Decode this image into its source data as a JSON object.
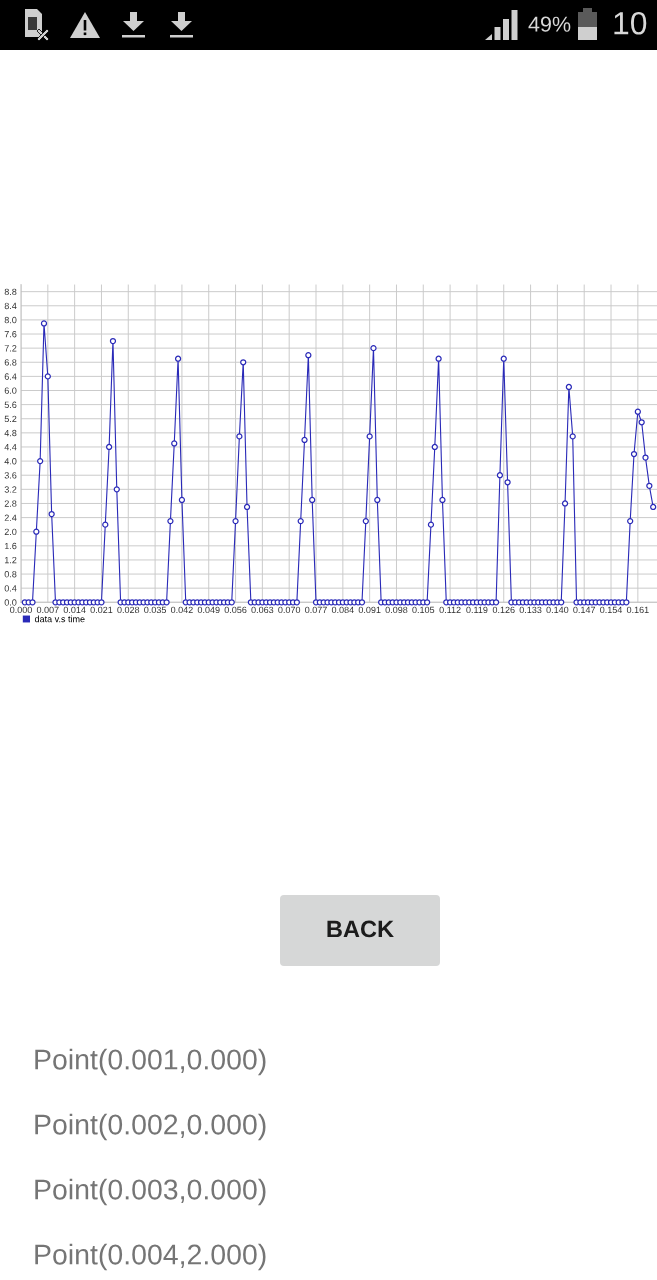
{
  "chart_data": {
    "type": "line",
    "annotations": [
      "49%",
      "10",
      "BACK",
      "Point(0.001,0.000)",
      "Point(0.002,0.000)",
      "Point(0.003,0.000)",
      "Point(0.004,2.000)"
    ],
    "x": [
      0.001,
      0.002,
      0.003,
      0.004,
      0.005,
      0.006,
      0.007,
      0.008,
      0.009,
      0.01,
      0.011,
      0.012,
      0.013,
      0.014,
      0.015,
      0.016,
      0.017,
      0.018,
      0.019,
      0.02,
      0.021,
      0.022,
      0.023,
      0.024,
      0.025,
      0.026,
      0.027,
      0.028,
      0.029,
      0.03,
      0.031,
      0.032,
      0.033,
      0.034,
      0.035,
      0.036,
      0.037,
      0.038,
      0.039,
      0.04,
      0.041,
      0.042,
      0.043,
      0.044,
      0.045,
      0.046,
      0.047,
      0.048,
      0.049,
      0.05,
      0.051,
      0.052,
      0.053,
      0.054,
      0.055,
      0.056,
      0.057,
      0.058,
      0.059,
      0.06,
      0.061,
      0.062,
      0.063,
      0.064,
      0.065,
      0.066,
      0.067,
      0.068,
      0.069,
      0.07,
      0.071,
      0.072,
      0.073,
      0.074,
      0.075,
      0.076,
      0.077,
      0.078,
      0.079,
      0.08,
      0.081,
      0.082,
      0.083,
      0.084,
      0.085,
      0.086,
      0.087,
      0.088,
      0.089,
      0.09,
      0.091,
      0.092,
      0.093,
      0.094,
      0.095,
      0.096,
      0.097,
      0.098,
      0.099,
      0.1,
      0.101,
      0.102,
      0.103,
      0.104,
      0.105,
      0.106,
      0.107,
      0.108,
      0.109,
      0.11,
      0.111,
      0.112,
      0.113,
      0.114,
      0.115,
      0.116,
      0.117,
      0.118,
      0.119,
      0.12,
      0.121,
      0.122,
      0.123,
      0.124,
      0.125,
      0.126,
      0.127,
      0.128,
      0.129,
      0.13,
      0.131,
      0.132,
      0.133,
      0.134,
      0.135,
      0.136,
      0.137,
      0.138,
      0.139,
      0.14,
      0.141,
      0.142,
      0.143,
      0.144,
      0.145,
      0.146,
      0.147,
      0.148,
      0.149,
      0.15,
      0.151,
      0.152,
      0.153,
      0.154,
      0.155,
      0.156,
      0.157,
      0.158,
      0.159,
      0.16,
      0.161,
      0.162,
      0.163,
      0.164,
      0.165
    ],
    "series": [
      {
        "name": "data v.s time",
        "color": "#2a2ab8",
        "values": [
          0,
          0,
          0,
          2.0,
          4.0,
          7.9,
          6.4,
          2.5,
          0,
          0,
          0,
          0,
          0,
          0,
          0,
          0,
          0,
          0,
          0,
          0,
          0,
          2.2,
          4.4,
          7.4,
          3.2,
          0,
          0,
          0,
          0,
          0,
          0,
          0,
          0,
          0,
          0,
          0,
          0,
          0,
          2.3,
          4.5,
          6.9,
          2.9,
          0,
          0,
          0,
          0,
          0,
          0,
          0,
          0,
          0,
          0,
          0,
          0,
          0,
          2.3,
          4.7,
          6.8,
          2.7,
          0,
          0,
          0,
          0,
          0,
          0,
          0,
          0,
          0,
          0,
          0,
          0,
          0,
          2.3,
          4.6,
          7.0,
          2.9,
          0,
          0,
          0,
          0,
          0,
          0,
          0,
          0,
          0,
          0,
          0,
          0,
          0,
          2.3,
          4.7,
          7.2,
          2.9,
          0,
          0,
          0,
          0,
          0,
          0,
          0,
          0,
          0,
          0,
          0,
          0,
          0,
          2.2,
          4.4,
          6.9,
          2.9,
          0,
          0,
          0,
          0,
          0,
          0,
          0,
          0,
          0,
          0,
          0,
          0,
          0,
          0,
          3.6,
          6.9,
          3.4,
          0,
          0,
          0,
          0,
          0,
          0,
          0,
          0,
          0,
          0,
          0,
          0,
          0,
          0,
          2.8,
          6.1,
          4.7,
          0,
          0,
          0,
          0,
          0,
          0,
          0,
          0,
          0,
          0,
          0,
          0,
          0,
          0,
          2.3,
          4.2,
          5.4,
          5.1,
          4.1,
          3.3,
          2.7
        ]
      }
    ],
    "xlim": [
      0,
      0.166
    ],
    "ylim": [
      0,
      9.0
    ],
    "xticks": [
      {
        "value": 0,
        "label": "0.000"
      },
      {
        "value": 0.007,
        "label": "0.007"
      },
      {
        "value": 0.014,
        "label": "0.014"
      },
      {
        "value": 0.021,
        "label": "0.021"
      },
      {
        "value": 0.028,
        "label": "0.028"
      },
      {
        "value": 0.035,
        "label": "0.035"
      },
      {
        "value": 0.042,
        "label": "0.042"
      },
      {
        "value": 0.049,
        "label": "0.049"
      },
      {
        "value": 0.056,
        "label": "0.056"
      },
      {
        "value": 0.063,
        "label": "0.063"
      },
      {
        "value": 0.07,
        "label": "0.070"
      },
      {
        "value": 0.077,
        "label": "0.077"
      },
      {
        "value": 0.084,
        "label": "0.084"
      },
      {
        "value": 0.091,
        "label": "0.091"
      },
      {
        "value": 0.098,
        "label": "0.098"
      },
      {
        "value": 0.105,
        "label": "0.105"
      },
      {
        "value": 0.112,
        "label": "0.112"
      },
      {
        "value": 0.119,
        "label": "0.119"
      },
      {
        "value": 0.126,
        "label": "0.126"
      },
      {
        "value": 0.133,
        "label": "0.133"
      },
      {
        "value": 0.14,
        "label": "0.140"
      },
      {
        "value": 0.147,
        "label": "0.147"
      },
      {
        "value": 0.154,
        "label": "0.154"
      },
      {
        "value": 0.161,
        "label": "0.161"
      }
    ],
    "yticks": [
      {
        "value": 0,
        "label": "0.0"
      },
      {
        "value": 0.4,
        "label": "0.4"
      },
      {
        "value": 0.8,
        "label": "0.8"
      },
      {
        "value": 1.2,
        "label": "1.2"
      },
      {
        "value": 1.6,
        "label": "1.6"
      },
      {
        "value": 2.0,
        "label": "2.0"
      },
      {
        "value": 2.4,
        "label": "2.4"
      },
      {
        "value": 2.8,
        "label": "2.8"
      },
      {
        "value": 3.2,
        "label": "3.2"
      },
      {
        "value": 3.6,
        "label": "3.6"
      },
      {
        "value": 4.0,
        "label": "4.0"
      },
      {
        "value": 4.4,
        "label": "4.4"
      },
      {
        "value": 4.8,
        "label": "4.8"
      },
      {
        "value": 5.2,
        "label": "5.2"
      },
      {
        "value": 5.6,
        "label": "5.6"
      },
      {
        "value": 6.0,
        "label": "6.0"
      },
      {
        "value": 6.4,
        "label": "6.4"
      },
      {
        "value": 6.8,
        "label": "6.8"
      },
      {
        "value": 7.2,
        "label": "7.2"
      },
      {
        "value": 7.6,
        "label": "7.6"
      },
      {
        "value": 8.0,
        "label": "8.0"
      },
      {
        "value": 8.4,
        "label": "8.4"
      },
      {
        "value": 8.8,
        "label": "8.8"
      }
    ],
    "grid": true,
    "legend": "bottom left",
    "marker": "circle",
    "line_style": "solid"
  }
}
